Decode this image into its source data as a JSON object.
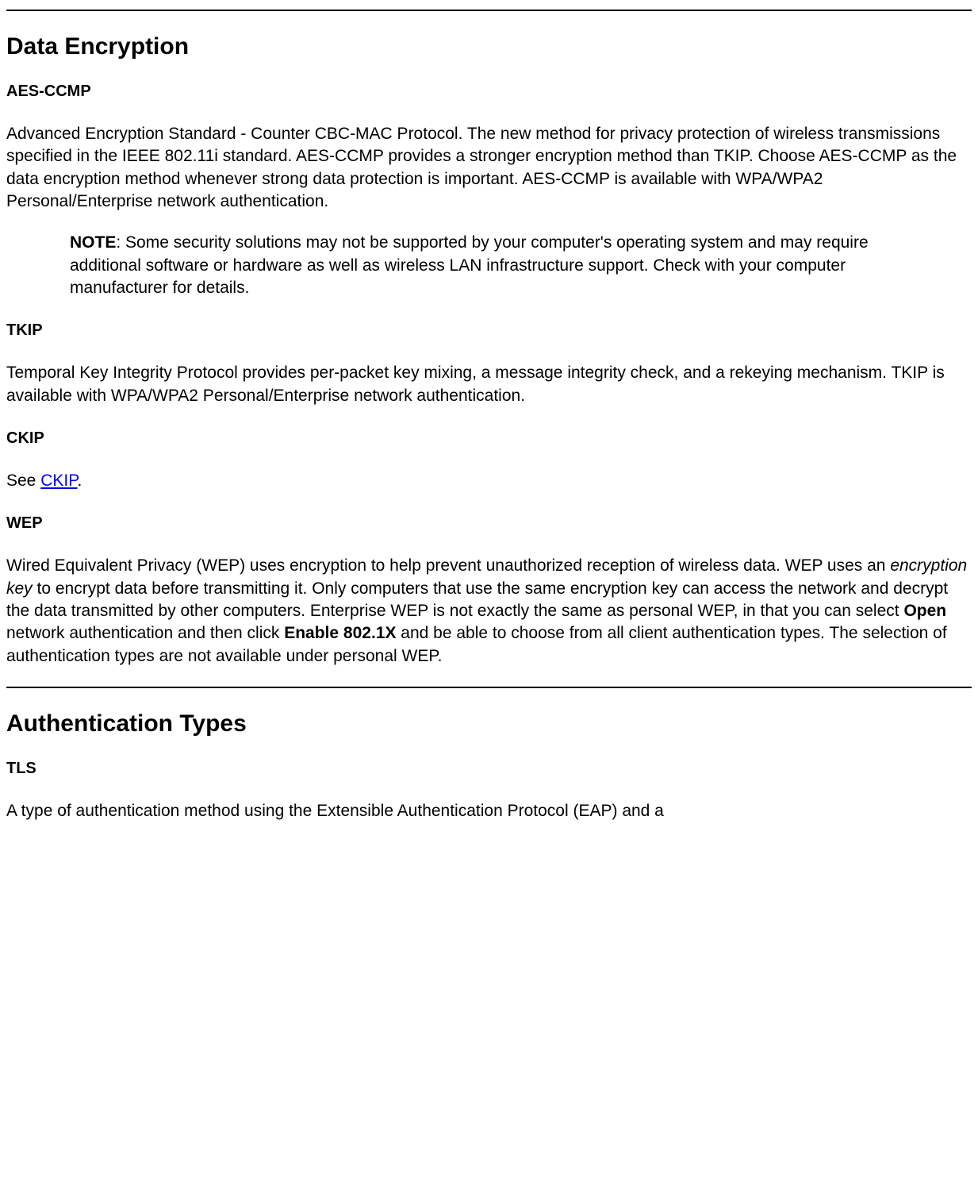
{
  "section1": {
    "heading": "Data Encryption",
    "aes": {
      "title": "AES-CCMP",
      "body": "Advanced Encryption Standard - Counter CBC-MAC Protocol. The new method for privacy protection of wireless transmissions specified in the IEEE 802.11i standard. AES-CCMP provides a stronger encryption method than TKIP. Choose AES-CCMP as the data encryption method whenever strong data protection is important. AES-CCMP is available with WPA/WPA2 Personal/Enterprise network authentication.",
      "note_label": "NOTE",
      "note_body": ": Some security solutions may not be supported by your computer's operating system and may require additional software or hardware as well as wireless LAN infrastructure support. Check with your computer manufacturer for details."
    },
    "tkip": {
      "title": "TKIP",
      "body": "Temporal Key Integrity Protocol provides per-packet key mixing, a message integrity check, and a rekeying mechanism. TKIP is available with WPA/WPA2 Personal/Enterprise network authentication."
    },
    "ckip": {
      "title": "CKIP",
      "see_prefix": "See ",
      "link_text": "CKIP",
      "suffix": "."
    },
    "wep": {
      "title": "WEP",
      "p1": "Wired Equivalent Privacy (WEP) uses encryption to help prevent unauthorized reception of wireless data. WEP uses an ",
      "italic": "encryption key",
      "p2": " to encrypt data before transmitting it. Only computers that use the same encryption key can access the network and decrypt the data transmitted by other computers. Enterprise WEP is not exactly the same as personal WEP, in that you can select ",
      "bold1": "Open",
      "p3": " network authentication and then click ",
      "bold2": "Enable 802.1X",
      "p4": " and be able to choose from all client authentication types. The selection of authentication types are not available under personal WEP."
    }
  },
  "section2": {
    "heading": "Authentication Types",
    "tls": {
      "title": "TLS",
      "body": "A type of authentication method using the Extensible Authentication Protocol (EAP) and a"
    }
  }
}
